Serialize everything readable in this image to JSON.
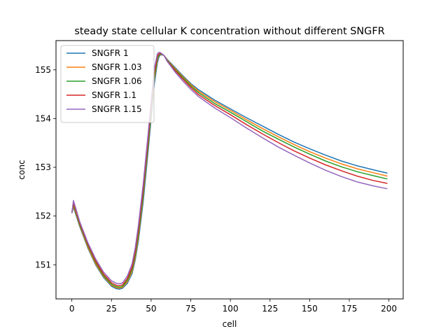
{
  "chart_data": {
    "type": "line",
    "title": "steady state cellular K concentration without different SNGFR",
    "xlabel": "cell",
    "ylabel": "conc",
    "xlim": [
      -10,
      209
    ],
    "ylim": [
      150.3,
      155.6
    ],
    "xticks": [
      0,
      25,
      50,
      75,
      100,
      125,
      150,
      175,
      200
    ],
    "yticks": [
      151,
      152,
      153,
      154,
      155
    ],
    "legend_position": "upper-left",
    "grid": false,
    "series": [
      {
        "name": "SNGFR 1",
        "color": "#1f77b4",
        "x": [
          0,
          1,
          5,
          10,
          15,
          20,
          25,
          28,
          30,
          32,
          35,
          38,
          40,
          42,
          45,
          48,
          50,
          52,
          54,
          55,
          56,
          58,
          60,
          65,
          70,
          75,
          80,
          90,
          100,
          110,
          120,
          130,
          140,
          150,
          160,
          170,
          180,
          190,
          199
        ],
        "y": [
          152.06,
          152.18,
          151.78,
          151.35,
          151.0,
          150.74,
          150.56,
          150.51,
          150.5,
          150.52,
          150.62,
          150.82,
          151.1,
          151.5,
          152.3,
          153.3,
          154.0,
          154.7,
          155.15,
          155.27,
          155.31,
          155.3,
          155.22,
          155.05,
          154.88,
          154.72,
          154.59,
          154.38,
          154.2,
          154.02,
          153.85,
          153.68,
          153.52,
          153.38,
          153.25,
          153.13,
          153.03,
          152.95,
          152.88
        ]
      },
      {
        "name": "SNGFR 1.03",
        "color": "#ff7f0e",
        "x": [
          0,
          1,
          5,
          10,
          15,
          20,
          25,
          28,
          30,
          32,
          35,
          38,
          40,
          42,
          45,
          48,
          50,
          52,
          54,
          55,
          56,
          58,
          60,
          65,
          70,
          75,
          80,
          90,
          100,
          110,
          120,
          130,
          140,
          150,
          160,
          170,
          180,
          190,
          199
        ],
        "y": [
          152.06,
          152.21,
          151.8,
          151.37,
          151.02,
          150.76,
          150.58,
          150.53,
          150.52,
          150.54,
          150.65,
          150.86,
          151.15,
          151.57,
          152.4,
          153.4,
          154.1,
          154.8,
          155.2,
          155.3,
          155.32,
          155.3,
          155.21,
          155.03,
          154.86,
          154.7,
          154.56,
          154.35,
          154.17,
          153.98,
          153.8,
          153.63,
          153.47,
          153.32,
          153.19,
          153.07,
          152.97,
          152.89,
          152.82
        ]
      },
      {
        "name": "SNGFR 1.06",
        "color": "#2ca02c",
        "x": [
          0,
          1,
          5,
          10,
          15,
          20,
          25,
          28,
          30,
          32,
          35,
          38,
          40,
          42,
          45,
          48,
          50,
          52,
          54,
          55,
          56,
          58,
          60,
          65,
          70,
          75,
          80,
          90,
          100,
          110,
          120,
          130,
          140,
          150,
          160,
          170,
          180,
          190,
          199
        ],
        "y": [
          152.06,
          152.24,
          151.82,
          151.4,
          151.05,
          150.78,
          150.6,
          150.55,
          150.54,
          150.56,
          150.68,
          150.9,
          151.2,
          151.63,
          152.45,
          153.45,
          154.15,
          154.85,
          155.23,
          155.31,
          155.33,
          155.3,
          155.2,
          155.01,
          154.84,
          154.67,
          154.53,
          154.31,
          154.13,
          153.94,
          153.75,
          153.58,
          153.42,
          153.27,
          153.13,
          153.01,
          152.91,
          152.83,
          152.76
        ]
      },
      {
        "name": "SNGFR 1.1",
        "color": "#d62728",
        "x": [
          0,
          1,
          5,
          10,
          15,
          20,
          25,
          28,
          30,
          32,
          35,
          38,
          40,
          42,
          45,
          48,
          50,
          52,
          54,
          55,
          56,
          58,
          60,
          65,
          70,
          75,
          80,
          90,
          100,
          110,
          120,
          130,
          140,
          150,
          160,
          170,
          180,
          190,
          199
        ],
        "y": [
          152.06,
          152.27,
          151.85,
          151.43,
          151.08,
          150.81,
          150.63,
          150.58,
          150.57,
          150.59,
          150.72,
          150.95,
          151.27,
          151.72,
          152.55,
          153.55,
          154.25,
          154.93,
          155.28,
          155.33,
          155.34,
          155.3,
          155.19,
          154.99,
          154.81,
          154.64,
          154.49,
          154.27,
          154.08,
          153.88,
          153.69,
          153.51,
          153.34,
          153.19,
          153.05,
          152.93,
          152.82,
          152.73,
          152.67
        ]
      },
      {
        "name": "SNGFR 1.15",
        "color": "#9467bd",
        "x": [
          0,
          1,
          5,
          10,
          15,
          20,
          25,
          28,
          30,
          32,
          35,
          38,
          40,
          42,
          45,
          48,
          50,
          52,
          54,
          55,
          56,
          58,
          60,
          65,
          70,
          75,
          80,
          90,
          100,
          110,
          120,
          130,
          140,
          150,
          160,
          170,
          180,
          190,
          199
        ],
        "y": [
          152.06,
          152.32,
          151.88,
          151.46,
          151.12,
          150.85,
          150.67,
          150.62,
          150.61,
          150.63,
          150.77,
          151.02,
          151.35,
          151.82,
          152.66,
          153.66,
          154.35,
          155.02,
          155.33,
          155.36,
          155.35,
          155.3,
          155.18,
          154.96,
          154.77,
          154.6,
          154.45,
          154.22,
          154.02,
          153.81,
          153.61,
          153.42,
          153.25,
          153.09,
          152.94,
          152.81,
          152.7,
          152.62,
          152.56
        ]
      }
    ]
  }
}
